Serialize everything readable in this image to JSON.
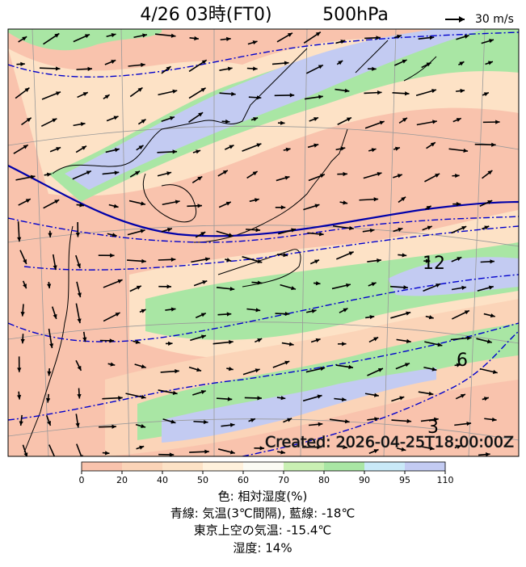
{
  "header": {
    "title_left": "4/26 03時(FT0)",
    "title_right": "500hPa",
    "scale_label": "30 m/s"
  },
  "map": {
    "contour_labels": [
      "12",
      "6",
      "3"
    ],
    "created": "Created: 2026-04-25T18:00:00Z"
  },
  "colorbar": {
    "ticks": [
      0,
      20,
      40,
      50,
      60,
      70,
      80,
      90,
      95,
      110
    ],
    "colors": [
      "#f9c3ad",
      "#fbd4b8",
      "#fde2c6",
      "#fff1dc",
      "#fbfbf4",
      "#c9f0b3",
      "#a9e6a4",
      "#c9e9f8",
      "#c3cbf2"
    ]
  },
  "footer": {
    "lines": [
      "色: 相対湿度(%)",
      "青線: 気温(3℃間隔), 藍線: -18℃",
      "東京上空の気温: -15.4℃",
      "湿度: 14%"
    ]
  }
}
